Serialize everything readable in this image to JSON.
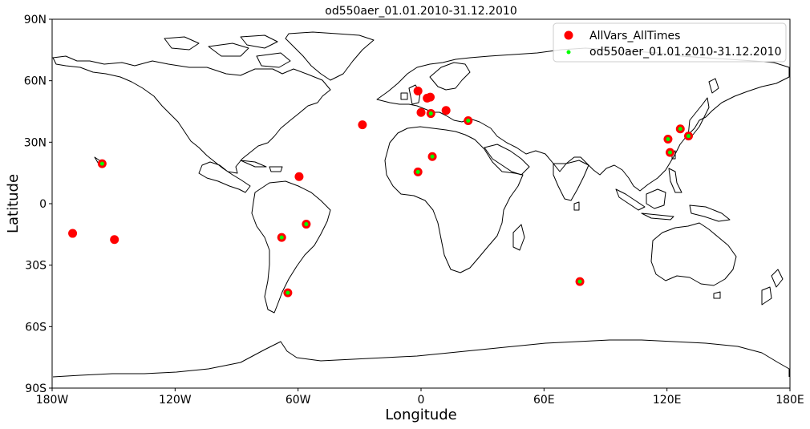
{
  "chart_data": {
    "type": "scatter",
    "title": "od550aer_01.01.2010-31.12.2010",
    "xlabel": "Longitude",
    "ylabel": "Latitude",
    "xlim": [
      -180,
      180
    ],
    "ylim": [
      -90,
      90
    ],
    "xticks": [
      {
        "value": -180,
        "label": "180W"
      },
      {
        "value": -120,
        "label": "120W"
      },
      {
        "value": -60,
        "label": "60W"
      },
      {
        "value": 0,
        "label": "0"
      },
      {
        "value": 60,
        "label": "60E"
      },
      {
        "value": 120,
        "label": "120E"
      },
      {
        "value": 180,
        "label": "180E"
      }
    ],
    "yticks": [
      {
        "value": 90,
        "label": "90N"
      },
      {
        "value": 60,
        "label": "60N"
      },
      {
        "value": 30,
        "label": "30N"
      },
      {
        "value": 0,
        "label": "0"
      },
      {
        "value": -30,
        "label": "30S"
      },
      {
        "value": -60,
        "label": "60S"
      },
      {
        "value": -90,
        "label": "90S"
      }
    ],
    "grid": false,
    "legend_position": "top-right",
    "series": [
      {
        "name": "AllVars_AllTimes",
        "color": "#ff0000",
        "points": [
          {
            "lon": -170,
            "lat": -14.5
          },
          {
            "lon": -149.6,
            "lat": -17.5
          },
          {
            "lon": -155.6,
            "lat": 19.5
          },
          {
            "lon": -59.5,
            "lat": 13.2
          },
          {
            "lon": -28.6,
            "lat": 38.5
          },
          {
            "lon": -68.0,
            "lat": -16.5
          },
          {
            "lon": -56.0,
            "lat": -10.0
          },
          {
            "lon": -65.0,
            "lat": -43.5
          },
          {
            "lon": -1.5,
            "lat": 55.0
          },
          {
            "lon": 0.0,
            "lat": 44.5
          },
          {
            "lon": 3.0,
            "lat": 51.5
          },
          {
            "lon": 4.5,
            "lat": 52.0
          },
          {
            "lon": 4.8,
            "lat": 44.0
          },
          {
            "lon": 12.2,
            "lat": 45.5
          },
          {
            "lon": 23.0,
            "lat": 40.5
          },
          {
            "lon": -1.5,
            "lat": 15.5
          },
          {
            "lon": 5.5,
            "lat": 23.0
          },
          {
            "lon": 77.5,
            "lat": -38.0
          },
          {
            "lon": 120.5,
            "lat": 31.5
          },
          {
            "lon": 121.5,
            "lat": 25.0
          },
          {
            "lon": 126.5,
            "lat": 36.5
          },
          {
            "lon": 130.5,
            "lat": 33.0
          }
        ]
      },
      {
        "name": "od550aer_01.01.2010-31.12.2010",
        "color": "#00ff00",
        "points": [
          {
            "lon": -155.6,
            "lat": 19.5
          },
          {
            "lon": -68.0,
            "lat": -16.5
          },
          {
            "lon": -56.0,
            "lat": -10.0
          },
          {
            "lon": -65.0,
            "lat": -43.5
          },
          {
            "lon": 4.8,
            "lat": 44.0
          },
          {
            "lon": 23.0,
            "lat": 40.5
          },
          {
            "lon": -1.5,
            "lat": 15.5
          },
          {
            "lon": 5.5,
            "lat": 23.0
          },
          {
            "lon": 77.5,
            "lat": -38.0
          },
          {
            "lon": 120.5,
            "lat": 31.5
          },
          {
            "lon": 121.5,
            "lat": 25.0
          },
          {
            "lon": 126.5,
            "lat": 36.5
          },
          {
            "lon": 130.5,
            "lat": 33.0
          }
        ]
      }
    ]
  }
}
